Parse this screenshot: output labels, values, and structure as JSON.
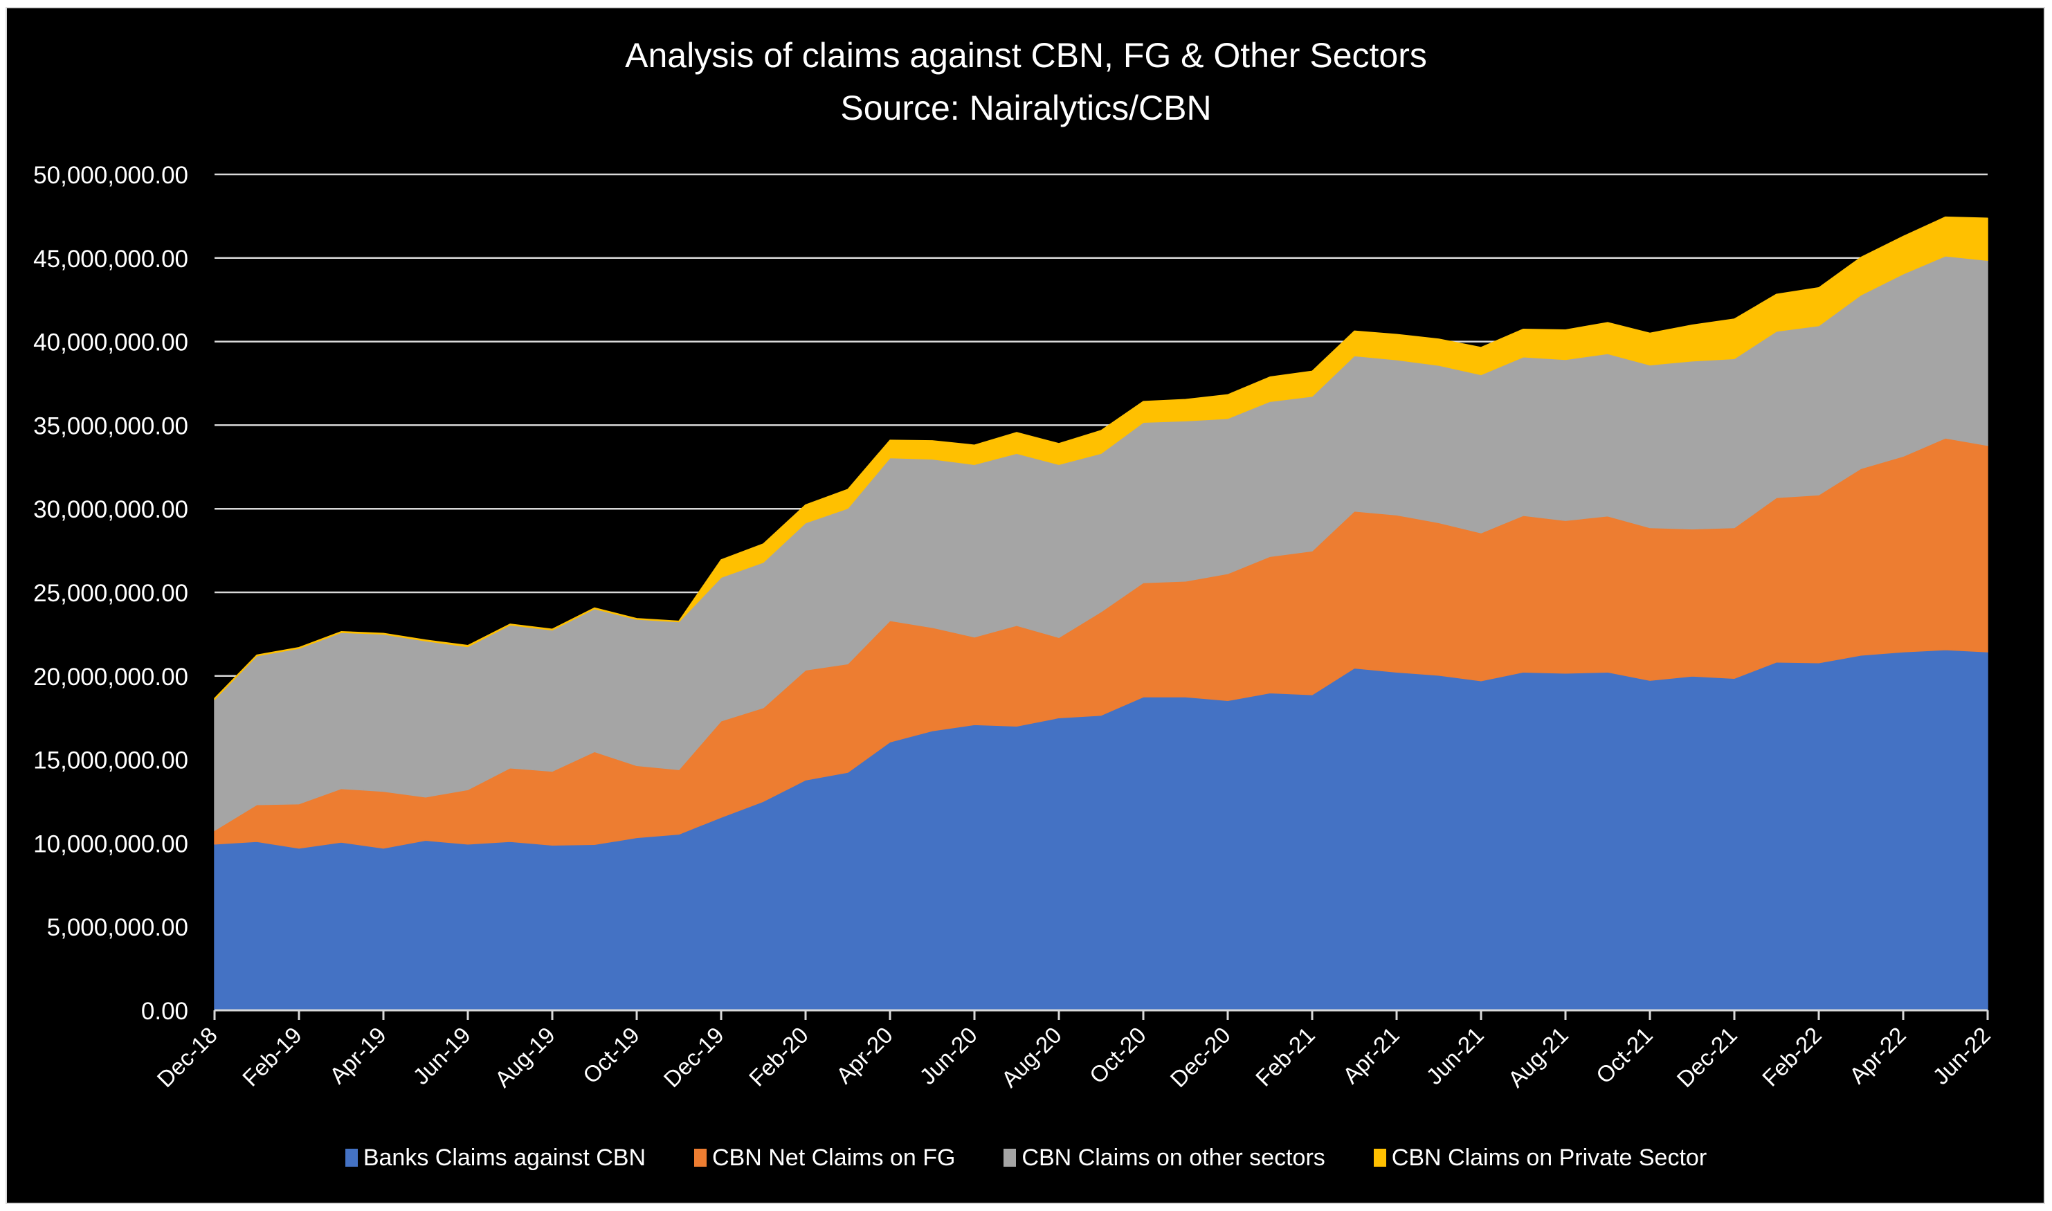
{
  "chart_data": {
    "type": "area",
    "stacked": true,
    "title": "Analysis of claims against CBN, FG & Other Sectors",
    "subtitle": "Source: Nairalytics/CBN",
    "xlabel": "",
    "ylabel": "",
    "ylim": [
      0,
      50000000
    ],
    "y_ticks": [
      "0.00",
      "5,000,000.00",
      "10,000,000.00",
      "15,000,000.00",
      "20,000,000.00",
      "25,000,000.00",
      "30,000,000.00",
      "35,000,000.00",
      "40,000,000.00",
      "45,000,000.00",
      "50,000,000.00"
    ],
    "y_tick_values": [
      0,
      5000000,
      10000000,
      15000000,
      20000000,
      25000000,
      30000000,
      35000000,
      40000000,
      45000000,
      50000000
    ],
    "grid": true,
    "legend_position": "bottom",
    "x": [
      "Dec-18",
      "Jan-19",
      "Feb-19",
      "Mar-19",
      "Apr-19",
      "May-19",
      "Jun-19",
      "Jul-19",
      "Aug-19",
      "Sep-19",
      "Oct-19",
      "Nov-19",
      "Dec-19",
      "Jan-20",
      "Feb-20",
      "Mar-20",
      "Apr-20",
      "May-20",
      "Jun-20",
      "Jul-20",
      "Aug-20",
      "Sep-20",
      "Oct-20",
      "Nov-20",
      "Dec-20",
      "Jan-21",
      "Feb-21",
      "Mar-21",
      "Apr-21",
      "May-21",
      "Jun-21",
      "Jul-21",
      "Aug-21",
      "Sep-21",
      "Oct-21",
      "Nov-21",
      "Dec-21",
      "Jan-22",
      "Feb-22",
      "Mar-22",
      "Apr-22",
      "May-22",
      "Jun-22"
    ],
    "x_tick_labels": [
      "Dec-18",
      "Feb-19",
      "Apr-19",
      "Jun-19",
      "Aug-19",
      "Oct-19",
      "Dec-19",
      "Feb-20",
      "Apr-20",
      "Jun-20",
      "Aug-20",
      "Oct-20",
      "Dec-20",
      "Feb-21",
      "Apr-21",
      "Jun-21",
      "Aug-21",
      "Oct-21",
      "Dec-21",
      "Feb-22",
      "Apr-22",
      "Jun-22"
    ],
    "series": [
      {
        "name": "Banks Claims against CBN",
        "color": "#4472c4",
        "values": [
          9940000,
          10100000,
          9700000,
          10060000,
          9700000,
          10170000,
          9940000,
          10100000,
          9880000,
          9920000,
          10330000,
          10540000,
          11550000,
          12500000,
          13780000,
          14240000,
          16050000,
          16720000,
          17090000,
          17000000,
          17500000,
          17650000,
          18750000,
          18750000,
          18530000,
          18990000,
          18880000,
          20470000,
          20230000,
          20040000,
          19710000,
          20230000,
          20170000,
          20230000,
          19740000,
          19990000,
          19860000,
          20830000,
          20790000,
          21240000,
          21440000,
          21570000,
          21440000
        ]
      },
      {
        "name": "CBN Net Claims on FG",
        "color": "#ed7d31",
        "values": [
          820000,
          2200000,
          2650000,
          3200000,
          3400000,
          2590000,
          3260000,
          4400000,
          4420000,
          5550000,
          4310000,
          3860000,
          5760000,
          5600000,
          6570000,
          6490000,
          7260000,
          6180000,
          5240000,
          6020000,
          4800000,
          6190000,
          6830000,
          6920000,
          7590000,
          8160000,
          8600000,
          9390000,
          9400000,
          9130000,
          8850000,
          9370000,
          9130000,
          9340000,
          9130000,
          8800000,
          9010000,
          9840000,
          10040000,
          11170000,
          11700000,
          12660000,
          12350000
        ]
      },
      {
        "name": "CBN Claims on other sectors",
        "color": "#a5a5a5",
        "values": [
          7840000,
          8900000,
          9300000,
          9340000,
          9400000,
          9340000,
          8550000,
          8550000,
          8450000,
          8550000,
          8750000,
          8840000,
          8590000,
          8700000,
          8810000,
          9300000,
          9740000,
          10070000,
          10320000,
          10290000,
          10350000,
          9470000,
          9590000,
          9590000,
          9280000,
          9270000,
          9250000,
          9290000,
          9280000,
          9410000,
          9460000,
          9480000,
          9630000,
          9710000,
          9730000,
          10050000,
          10110000,
          9950000,
          10120000,
          10380000,
          10910000,
          10890000,
          11070000
        ]
      },
      {
        "name": "CBN Claims on Private Sector",
        "color": "#ffc000",
        "values": [
          60000,
          50000,
          50000,
          50000,
          50000,
          50000,
          70000,
          50000,
          50000,
          50000,
          40000,
          40000,
          1050000,
          1100000,
          1070000,
          1130000,
          1050000,
          1100000,
          1160000,
          1250000,
          1250000,
          1370000,
          1250000,
          1280000,
          1420000,
          1460000,
          1500000,
          1480000,
          1520000,
          1570000,
          1630000,
          1660000,
          1770000,
          1860000,
          1900000,
          2150000,
          2370000,
          2210000,
          2270000,
          2250000,
          2240000,
          2330000,
          2520000
        ]
      }
    ]
  }
}
